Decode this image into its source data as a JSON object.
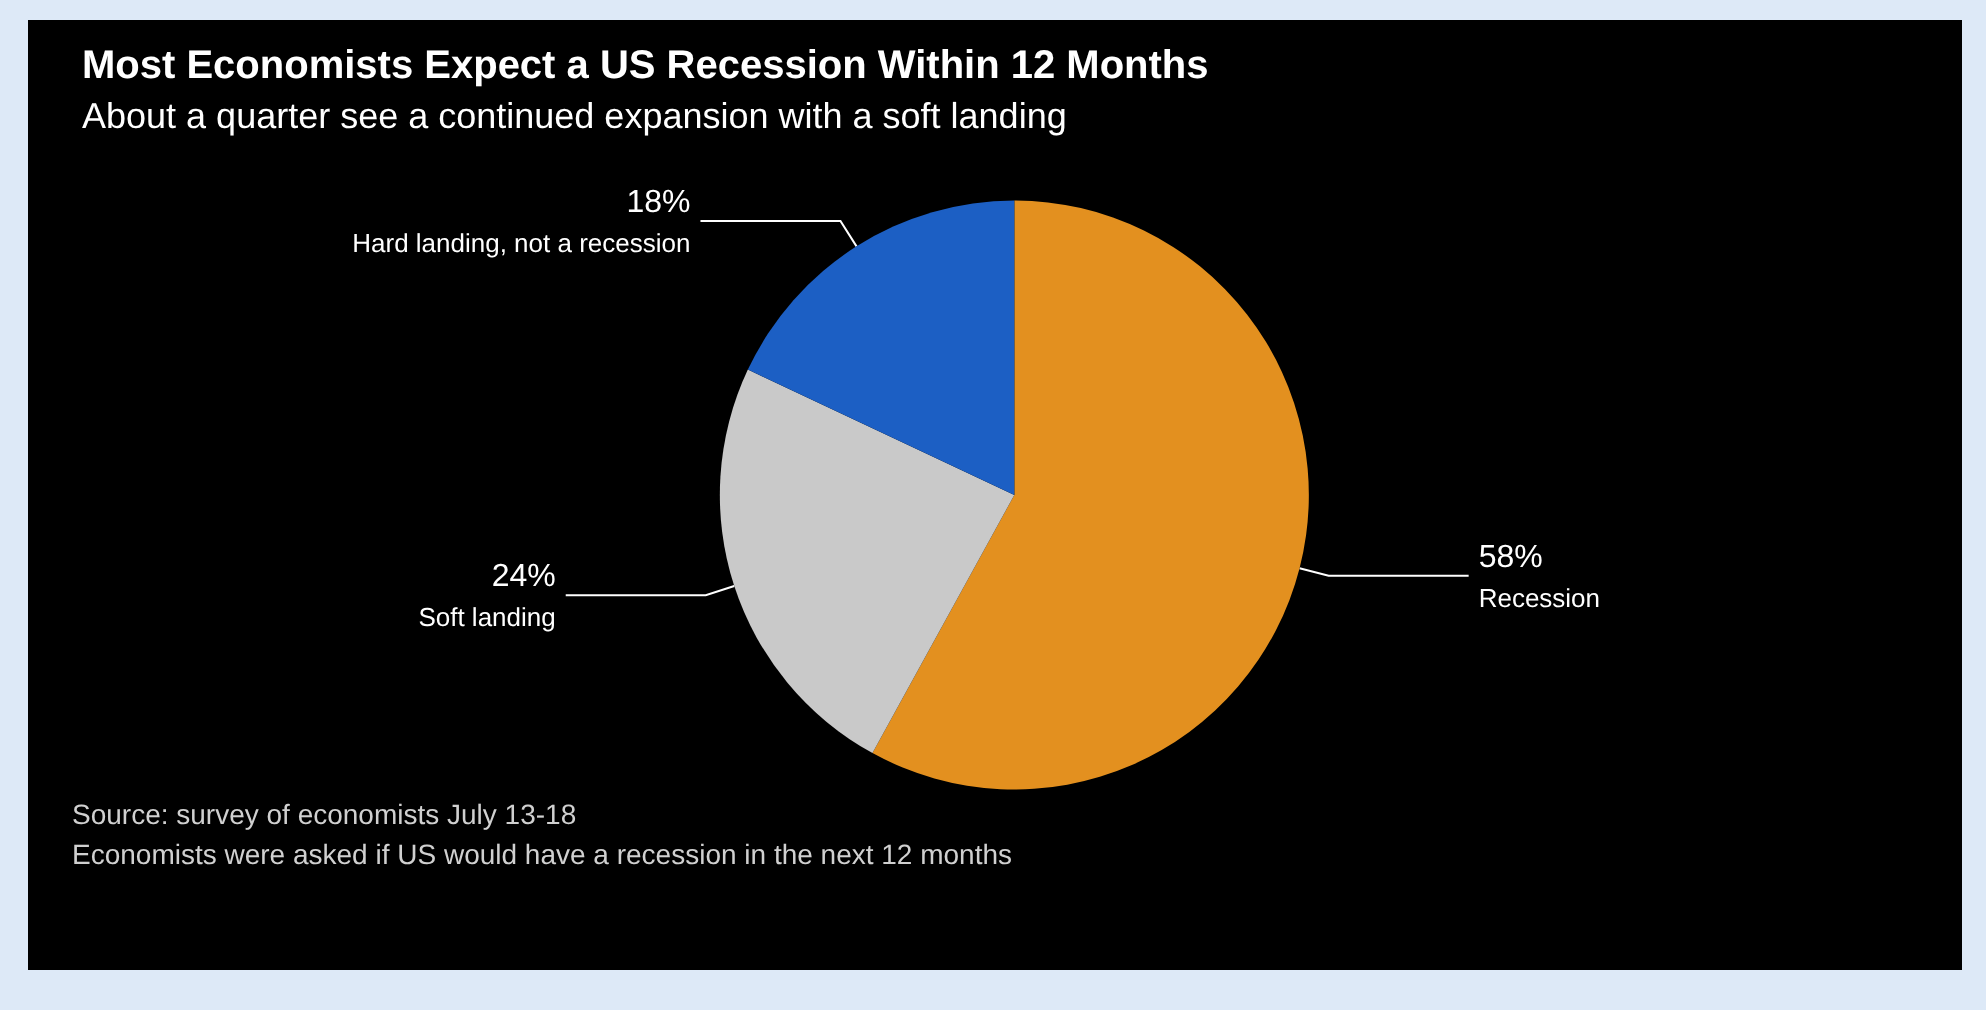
{
  "chart_data": {
    "type": "pie",
    "title": "Most Economists Expect a US Recession Within 12 Months",
    "subtitle": "About a quarter see a continued expansion with a soft landing",
    "categories": [
      "Recession",
      "Soft landing",
      "Hard landing, not a recession"
    ],
    "values": [
      58,
      24,
      18
    ],
    "value_labels": [
      "58%",
      "24%",
      "18%"
    ],
    "colors": [
      "#e3901f",
      "#c9c9c9",
      "#1c5fc4"
    ],
    "legend": false,
    "annotations": [
      "Source: survey of economists July 13-18",
      "Economists were asked if US would have a recession in the next 12 months"
    ]
  }
}
